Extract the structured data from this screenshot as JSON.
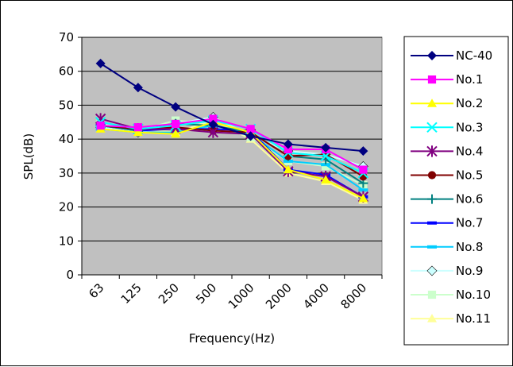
{
  "chart_data": {
    "type": "line",
    "xlabel": "Frequency(Hz)",
    "ylabel": "SPL(dB)",
    "categories": [
      "63",
      "125",
      "250",
      "500",
      "1000",
      "2000",
      "4000",
      "8000"
    ],
    "ylim": [
      0,
      70
    ],
    "yticks": [
      "0",
      "10",
      "20",
      "30",
      "40",
      "50",
      "60",
      "70"
    ],
    "grid": "horizontal",
    "plot_background": "#c0c0c0",
    "legend_position": "right",
    "series": [
      {
        "name": "NC-40",
        "color": "#000080",
        "marker": "diamond",
        "values": [
          62.3,
          55.2,
          49.5,
          44.3,
          40.9,
          38.5,
          37.5,
          36.5
        ]
      },
      {
        "name": "No.1",
        "color": "#ff00ff",
        "marker": "square",
        "values": [
          44,
          43.5,
          44.5,
          46,
          43,
          37,
          37,
          31
        ]
      },
      {
        "name": "No.2",
        "color": "#ffff00",
        "marker": "triangle",
        "values": [
          43,
          42,
          41.5,
          45,
          42,
          31,
          28,
          22.5
        ]
      },
      {
        "name": "No.3",
        "color": "#00ffff",
        "marker": "x",
        "values": [
          45,
          43,
          44,
          45.5,
          43,
          36,
          35,
          30
        ]
      },
      {
        "name": "No.4",
        "color": "#800080",
        "marker": "star",
        "values": [
          46,
          43,
          43,
          42,
          41.5,
          30.5,
          29,
          23
        ]
      },
      {
        "name": "No.5",
        "color": "#800000",
        "marker": "circle",
        "values": [
          44,
          43,
          43.5,
          42.5,
          42,
          35,
          35.5,
          29
        ]
      },
      {
        "name": "No.6",
        "color": "#008080",
        "marker": "plus",
        "values": [
          44,
          42.5,
          44.5,
          44,
          42,
          35,
          34,
          27
        ]
      },
      {
        "name": "No.7",
        "color": "#0000ff",
        "marker": "dash",
        "values": [
          44,
          42.5,
          43,
          43,
          42.5,
          31,
          29.5,
          23
        ]
      },
      {
        "name": "No.8",
        "color": "#00ccff",
        "marker": "dash",
        "values": [
          43,
          42,
          42,
          44,
          41.5,
          33.5,
          32.5,
          25
        ]
      },
      {
        "name": "No.9",
        "color": "#ccffff",
        "marker": "diamond",
        "values": [
          43.5,
          42,
          44.5,
          46.5,
          41,
          36.5,
          35.5,
          32
        ]
      },
      {
        "name": "No.10",
        "color": "#ccffcc",
        "marker": "square",
        "values": [
          44.5,
          42.5,
          45.5,
          44.5,
          40.5,
          33.5,
          32,
          26.5
        ]
      },
      {
        "name": "No.11",
        "color": "#ffff99",
        "marker": "triangle",
        "values": [
          44,
          43,
          42,
          45.5,
          40,
          30,
          27.5,
          22
        ]
      }
    ]
  }
}
